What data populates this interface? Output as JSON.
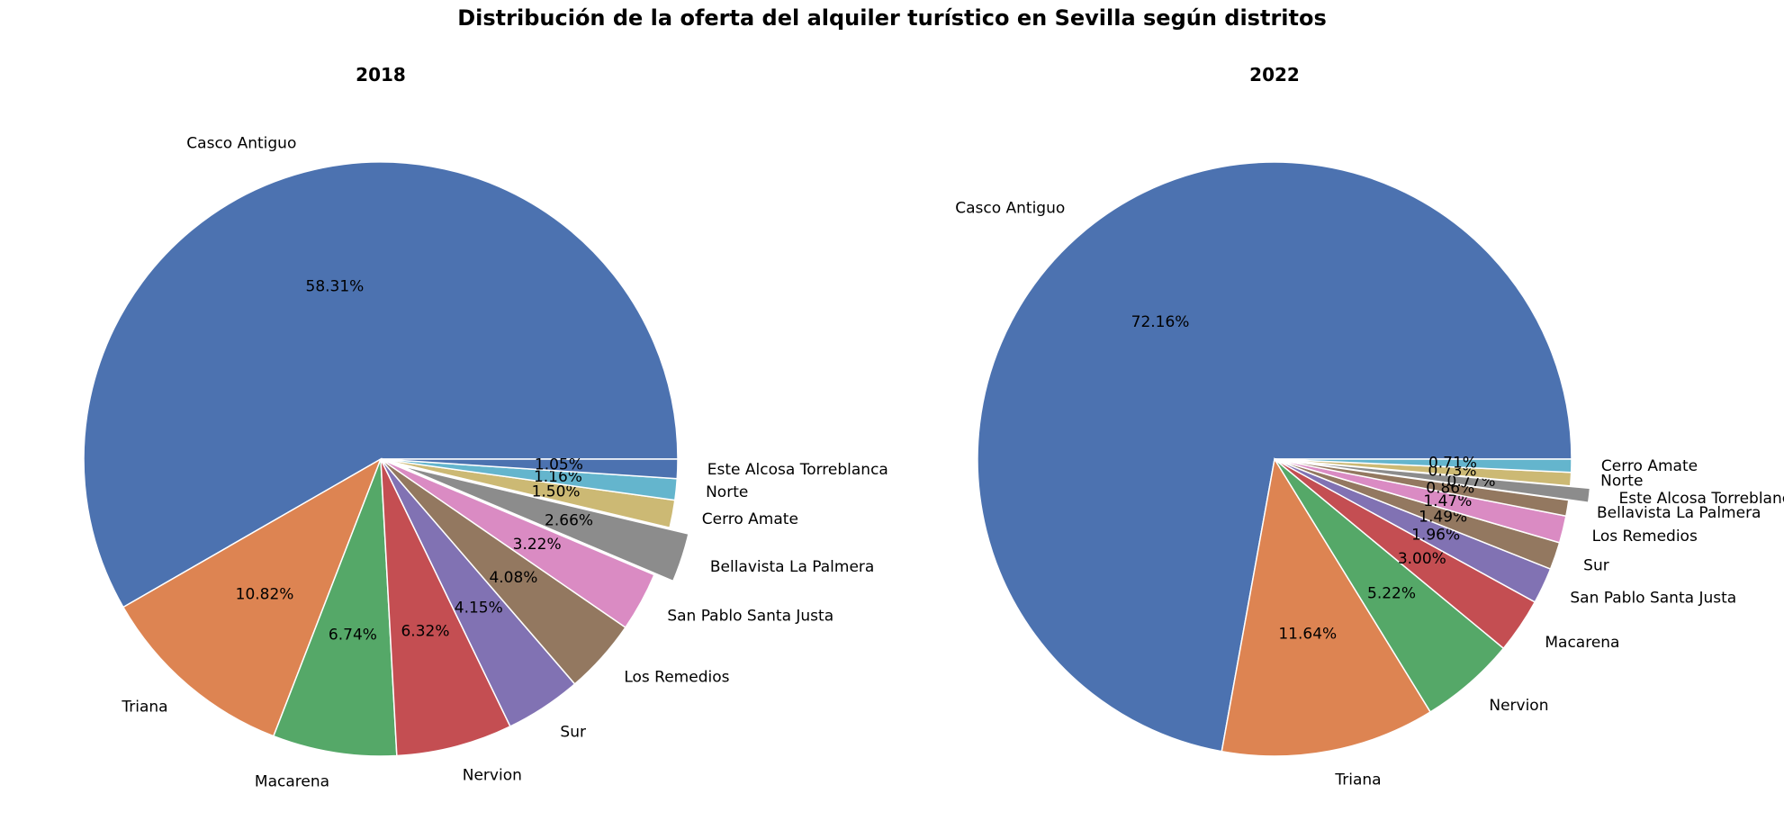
{
  "title": "Distribución de la oferta del alquiler turístico en Sevilla según distritos",
  "chart_data": [
    {
      "type": "pie",
      "title": "2018",
      "start_angle_deg": 0,
      "direction": "counterclockwise",
      "explode": "Bellavista La Palmera",
      "slices": [
        {
          "label": "Casco Antiguo",
          "pct": "58.31%",
          "value": 58.31,
          "color": "#4c72b0"
        },
        {
          "label": "Triana",
          "pct": "10.82%",
          "value": 10.82,
          "color": "#dd8452"
        },
        {
          "label": "Macarena",
          "pct": "6.74%",
          "value": 6.74,
          "color": "#55a868"
        },
        {
          "label": "Nervion",
          "pct": "6.32%",
          "value": 6.32,
          "color": "#c44e52"
        },
        {
          "label": "Sur",
          "pct": "4.15%",
          "value": 4.15,
          "color": "#8172b3"
        },
        {
          "label": "Los Remedios",
          "pct": "4.08%",
          "value": 4.08,
          "color": "#937860"
        },
        {
          "label": "San Pablo Santa Justa",
          "pct": "3.22%",
          "value": 3.22,
          "color": "#da8bc3"
        },
        {
          "label": "Bellavista La Palmera",
          "pct": "2.66%",
          "value": 2.66,
          "color": "#8c8c8c"
        },
        {
          "label": "Cerro Amate",
          "pct": "1.50%",
          "value": 1.5,
          "color": "#ccb974"
        },
        {
          "label": "Norte",
          "pct": "1.16%",
          "value": 1.16,
          "color": "#64b5cd"
        },
        {
          "label": "Este Alcosa Torreblanca",
          "pct": "1.05%",
          "value": 1.05,
          "color": "#4c72b0"
        }
      ]
    },
    {
      "type": "pie",
      "title": "2022",
      "start_angle_deg": 0,
      "direction": "counterclockwise",
      "explode": "Este Alcosa Torreblanca",
      "slices": [
        {
          "label": "Casco Antiguo",
          "pct": "72.16%",
          "value": 72.16,
          "color": "#4c72b0"
        },
        {
          "label": "Triana",
          "pct": "11.64%",
          "value": 11.64,
          "color": "#dd8452"
        },
        {
          "label": "Nervion",
          "pct": "5.22%",
          "value": 5.22,
          "color": "#55a868"
        },
        {
          "label": "Macarena",
          "pct": "3.00%",
          "value": 3.0,
          "color": "#c44e52"
        },
        {
          "label": "San Pablo Santa Justa",
          "pct": "1.96%",
          "value": 1.96,
          "color": "#8172b3"
        },
        {
          "label": "Sur",
          "pct": "1.49%",
          "value": 1.49,
          "color": "#937860"
        },
        {
          "label": "Los Remedios",
          "pct": "1.47%",
          "value": 1.47,
          "color": "#da8bc3"
        },
        {
          "label": "Bellavista La Palmera",
          "pct": "0.86%",
          "value": 0.86,
          "color": "#937860"
        },
        {
          "label": "Este Alcosa Torreblanca",
          "pct": "0.77%",
          "value": 0.77,
          "color": "#8c8c8c"
        },
        {
          "label": "Norte",
          "pct": "0.73%",
          "value": 0.73,
          "color": "#ccb974"
        },
        {
          "label": "Cerro Amate",
          "pct": "0.71%",
          "value": 0.71,
          "color": "#64b5cd"
        }
      ]
    }
  ]
}
